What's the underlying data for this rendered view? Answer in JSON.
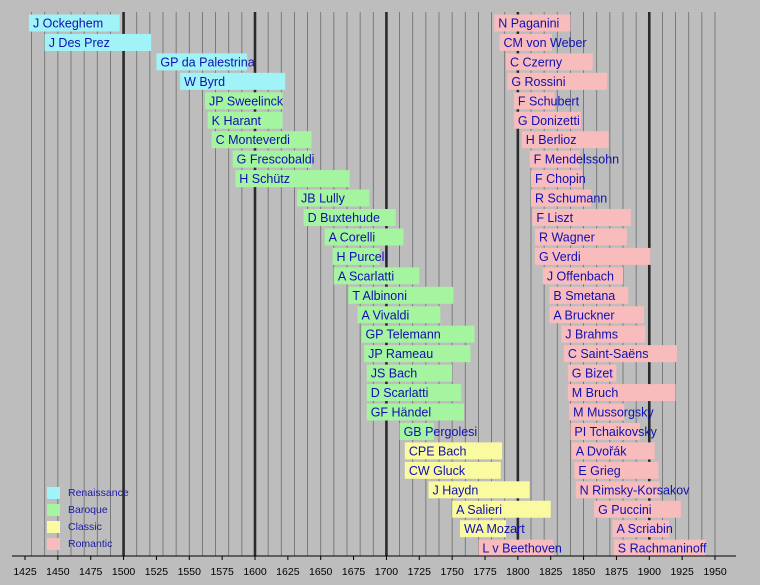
{
  "chart_data": {
    "type": "timeline",
    "title": "",
    "xlabel": "",
    "ylabel": "",
    "xlim": [
      1420,
      1960
    ],
    "x_ticks": [
      1425,
      1450,
      1475,
      1500,
      1525,
      1550,
      1575,
      1600,
      1625,
      1650,
      1675,
      1700,
      1725,
      1750,
      1775,
      1800,
      1825,
      1850,
      1875,
      1900,
      1925,
      1950
    ],
    "major_lines": [
      1500,
      1600,
      1700,
      1800,
      1900
    ],
    "grid": true,
    "legend_placement": "bottom-left",
    "eras": [
      {
        "key": "Renaissance",
        "label": "Renaissance",
        "color": "#a0f4f8"
      },
      {
        "key": "Baroque",
        "label": "Baroque",
        "color": "#a4f4a0"
      },
      {
        "key": "Classic",
        "label": "Classic",
        "color": "#fafaa0"
      },
      {
        "key": "Romantic",
        "label": "Romantic",
        "color": "#f8bcbc"
      }
    ],
    "left_column": [
      {
        "label": "J Ockeghem",
        "start": 1428,
        "end": 1497,
        "era": "Renaissance"
      },
      {
        "label": "J Des Prez",
        "start": 1440,
        "end": 1521,
        "era": "Renaissance"
      },
      {
        "label": "GP da Palestrina",
        "start": 1525,
        "end": 1594,
        "era": "Renaissance"
      },
      {
        "label": "W Byrd",
        "start": 1543,
        "end": 1623,
        "era": "Renaissance"
      },
      {
        "label": "JP Sweelinck",
        "start": 1562,
        "end": 1621,
        "era": "Baroque"
      },
      {
        "label": "K Harant",
        "start": 1564,
        "end": 1621,
        "era": "Baroque"
      },
      {
        "label": "C Monteverdi",
        "start": 1567,
        "end": 1643,
        "era": "Baroque"
      },
      {
        "label": "G Frescobaldi",
        "start": 1583,
        "end": 1643,
        "era": "Baroque"
      },
      {
        "label": "H Schütz",
        "start": 1585,
        "end": 1672,
        "era": "Baroque"
      },
      {
        "label": "JB Lully",
        "start": 1632,
        "end": 1687,
        "era": "Baroque"
      },
      {
        "label": "D Buxtehude",
        "start": 1637,
        "end": 1707,
        "era": "Baroque"
      },
      {
        "label": "A Corelli",
        "start": 1653,
        "end": 1713,
        "era": "Baroque"
      },
      {
        "label": "H Purcell",
        "start": 1659,
        "end": 1695,
        "era": "Baroque"
      },
      {
        "label": "A Scarlatti",
        "start": 1660,
        "end": 1725,
        "era": "Baroque"
      },
      {
        "label": "T Albinoni",
        "start": 1671,
        "end": 1751,
        "era": "Baroque"
      },
      {
        "label": "A Vivaldi",
        "start": 1678,
        "end": 1741,
        "era": "Baroque"
      },
      {
        "label": "GP Telemann",
        "start": 1681,
        "end": 1767,
        "era": "Baroque"
      },
      {
        "label": "JP Rameau",
        "start": 1683,
        "end": 1764,
        "era": "Baroque"
      },
      {
        "label": "JS Bach",
        "start": 1685,
        "end": 1750,
        "era": "Baroque"
      },
      {
        "label": "D Scarlatti",
        "start": 1685,
        "end": 1757,
        "era": "Baroque"
      },
      {
        "label": "GF Händel",
        "start": 1685,
        "end": 1759,
        "era": "Baroque"
      },
      {
        "label": "GB Pergolesi",
        "start": 1710,
        "end": 1736,
        "era": "Baroque"
      },
      {
        "label": "CPE Bach",
        "start": 1714,
        "end": 1788,
        "era": "Classic"
      },
      {
        "label": "CW Gluck",
        "start": 1714,
        "end": 1787,
        "era": "Classic"
      },
      {
        "label": "J Haydn",
        "start": 1732,
        "end": 1809,
        "era": "Classic"
      },
      {
        "label": "A Salieri",
        "start": 1750,
        "end": 1825,
        "era": "Classic"
      },
      {
        "label": "WA Mozart",
        "start": 1756,
        "end": 1791,
        "era": "Classic"
      },
      {
        "label": "L v Beethoven",
        "start": 1770,
        "end": 1827,
        "era": "Romantic"
      }
    ],
    "right_column": [
      {
        "label": "N Paganini",
        "start": 1782,
        "end": 1840,
        "era": "Romantic"
      },
      {
        "label": "CM von Weber",
        "start": 1786,
        "end": 1826,
        "era": "Romantic"
      },
      {
        "label": "C Czerny",
        "start": 1791,
        "end": 1857,
        "era": "Romantic"
      },
      {
        "label": "G Rossini",
        "start": 1792,
        "end": 1868,
        "era": "Romantic"
      },
      {
        "label": "F Schubert",
        "start": 1797,
        "end": 1828,
        "era": "Romantic"
      },
      {
        "label": "G Donizetti",
        "start": 1797,
        "end": 1848,
        "era": "Romantic"
      },
      {
        "label": "H Berlioz",
        "start": 1803,
        "end": 1869,
        "era": "Romantic"
      },
      {
        "label": "F Mendelssohn",
        "start": 1809,
        "end": 1847,
        "era": "Romantic"
      },
      {
        "label": "F Chopin",
        "start": 1810,
        "end": 1849,
        "era": "Romantic"
      },
      {
        "label": "R Schumann",
        "start": 1810,
        "end": 1856,
        "era": "Romantic"
      },
      {
        "label": "F Liszt",
        "start": 1811,
        "end": 1886,
        "era": "Romantic"
      },
      {
        "label": "R Wagner",
        "start": 1813,
        "end": 1883,
        "era": "Romantic"
      },
      {
        "label": "G Verdi",
        "start": 1813,
        "end": 1901,
        "era": "Romantic"
      },
      {
        "label": "J Offenbach",
        "start": 1819,
        "end": 1880,
        "era": "Romantic"
      },
      {
        "label": "B Smetana",
        "start": 1824,
        "end": 1884,
        "era": "Romantic"
      },
      {
        "label": "A Bruckner",
        "start": 1824,
        "end": 1896,
        "era": "Romantic"
      },
      {
        "label": "J Brahms",
        "start": 1833,
        "end": 1897,
        "era": "Romantic"
      },
      {
        "label": "C Saint-Saëns",
        "start": 1835,
        "end": 1921,
        "era": "Romantic"
      },
      {
        "label": "G Bizet",
        "start": 1838,
        "end": 1875,
        "era": "Romantic"
      },
      {
        "label": "M Bruch",
        "start": 1838,
        "end": 1920,
        "era": "Romantic"
      },
      {
        "label": "M Mussorgsky",
        "start": 1839,
        "end": 1881,
        "era": "Romantic"
      },
      {
        "label": "PI Tchaikovsky",
        "start": 1840,
        "end": 1893,
        "era": "Romantic"
      },
      {
        "label": "A Dvořák",
        "start": 1841,
        "end": 1904,
        "era": "Romantic"
      },
      {
        "label": "E Grieg",
        "start": 1843,
        "end": 1907,
        "era": "Romantic"
      },
      {
        "label": "N Rimsky-Korsakov",
        "start": 1844,
        "end": 1908,
        "era": "Romantic"
      },
      {
        "label": "G Puccini",
        "start": 1858,
        "end": 1924,
        "era": "Romantic"
      },
      {
        "label": "A Scriabin",
        "start": 1872,
        "end": 1915,
        "era": "Romantic"
      },
      {
        "label": "S Rachmaninoff",
        "start": 1873,
        "end": 1943,
        "era": "Romantic"
      }
    ]
  }
}
